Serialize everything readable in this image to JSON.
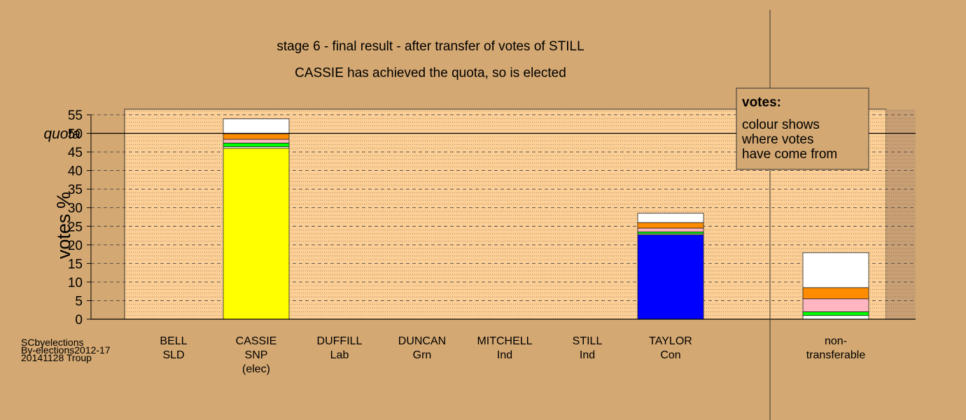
{
  "chart_data": {
    "type": "bar",
    "stacked": true,
    "title": "stage 6 - final result - after transfer of votes of STILL",
    "subtitle": "CASSIE has achieved the quota, so is elected",
    "ylabel": "votes %",
    "ylim": [
      0,
      56.5
    ],
    "yticks": [
      0,
      5,
      10,
      15,
      20,
      25,
      30,
      35,
      40,
      45,
      50,
      55
    ],
    "quota": {
      "label": "quota",
      "value": 50
    },
    "grid": "dashed at major ticks, dotted at minor",
    "categories": [
      {
        "name": "BELL",
        "party": "SLD",
        "note": ""
      },
      {
        "name": "CASSIE",
        "party": "SNP",
        "note": "(elec)"
      },
      {
        "name": "DUFFILL",
        "party": "Lab",
        "note": ""
      },
      {
        "name": "DUNCAN",
        "party": "Grn",
        "note": ""
      },
      {
        "name": "MITCHELL",
        "party": "Ind",
        "note": ""
      },
      {
        "name": "STILL",
        "party": "Ind",
        "note": ""
      },
      {
        "name": "TAYLOR",
        "party": "Con",
        "note": ""
      },
      {
        "name": "non-",
        "party": "transferable",
        "note": ""
      }
    ],
    "stacks": [
      [],
      [
        {
          "value": 46.0,
          "color": "#ffff00"
        },
        {
          "value": 0.4,
          "color": "#ffffff"
        },
        {
          "value": 1.0,
          "color": "#00ff00"
        },
        {
          "value": 1.0,
          "color": "#ffb6c1"
        },
        {
          "value": 1.5,
          "color": "#ff8c00"
        },
        {
          "value": 4.0,
          "color": "#ffffff"
        }
      ],
      [],
      [],
      [],
      [],
      [
        {
          "value": 22.7,
          "color": "#0000ff"
        },
        {
          "value": 0.3,
          "color": "#ffffff"
        },
        {
          "value": 0.5,
          "color": "#00ff00"
        },
        {
          "value": 1.0,
          "color": "#ffb6c1"
        },
        {
          "value": 1.5,
          "color": "#ff8c00"
        },
        {
          "value": 2.5,
          "color": "#ffffff"
        }
      ],
      [
        {
          "value": 1.0,
          "color": "#ffffff"
        },
        {
          "value": 1.0,
          "color": "#00ff00"
        },
        {
          "value": 3.5,
          "color": "#ffb6c1"
        },
        {
          "value": 3.0,
          "color": "#ff8c00"
        },
        {
          "value": 9.4,
          "color": "#ffffff"
        }
      ]
    ],
    "legend": {
      "title": "votes:",
      "lines": [
        "colour shows",
        "where votes",
        "have come from"
      ],
      "placement": "top-right"
    }
  },
  "footer": {
    "lines": [
      "SCbyelections",
      "By-elections2012-17",
      "20141128 Troup"
    ]
  },
  "colors": {
    "background": "#d4a872",
    "plot_area": "#fccf96",
    "legend_box": "#d4a872"
  }
}
